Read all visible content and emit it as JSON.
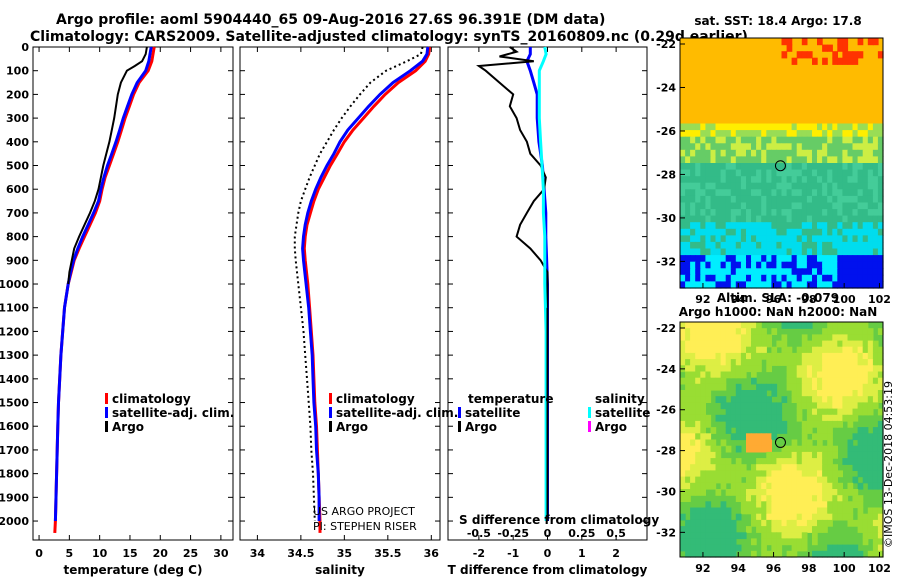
{
  "title": {
    "line1": "Argo profile: aoml 5904440_65 09-Aug-2016 27.6S 96.391E (DM data)",
    "line2": "Climatology: CARS2009. Satellite-adjusted climatology: synTS_20160809.nc (0.29d earlier)"
  },
  "colors": {
    "climatology": "#ff0000",
    "satellite": "#0000ff",
    "argo": "#000000",
    "sat_salinity": "#00ffff",
    "argo_salinity": "#ff00ff"
  },
  "panels": {
    "temperature": {
      "xlabel": "temperature (deg C)"
    },
    "salinity": {
      "xlabel": "salinity",
      "credit1": "US ARGO PROJECT",
      "credit2": "PI: STEPHEN RISER"
    },
    "difference": {
      "xlabel": "T difference from climatology",
      "top_label": "S difference from climatology",
      "legend_t_header": "temperature",
      "legend_s_header": "salinity"
    }
  },
  "legend": {
    "climatology": "climatology",
    "satellite": "satellite-adj. clim.",
    "argo": "Argo",
    "satellite_short": "satellite"
  },
  "maps": {
    "sst": {
      "title": "sat. SST: 18.4 Argo: 17.8",
      "xticks": [
        "92",
        "94",
        "96",
        "98",
        "100",
        "102"
      ],
      "yticks": [
        "-22",
        "-24",
        "-26",
        "-28",
        "-30",
        "-32"
      ]
    },
    "sla": {
      "title1": "Altim. SLA: -0.079",
      "title2": "Argo h1000: NaN h2000: NaN",
      "xticks": [
        "92",
        "94",
        "96",
        "98",
        "100",
        "102"
      ],
      "yticks": [
        "-22",
        "-24",
        "-26",
        "-28",
        "-30",
        "-32"
      ]
    },
    "watermark": "©IMOS 13-Dec-2018 04:53:19"
  },
  "chart_data": [
    {
      "type": "line",
      "title": "",
      "xlabel": "temperature (deg C)",
      "ylabel": "",
      "xlim": [
        -1,
        32
      ],
      "ylim": [
        2080,
        0
      ],
      "xticks": [
        "0",
        "5",
        "10",
        "15",
        "20",
        "25",
        "30"
      ],
      "yticks": [
        "0",
        "100",
        "200",
        "300",
        "400",
        "500",
        "600",
        "700",
        "800",
        "900",
        "1000",
        "1100",
        "1200",
        "1300",
        "1400",
        "1500",
        "1600",
        "1700",
        "1800",
        "1900",
        "2000"
      ],
      "series": [
        {
          "name": "climatology",
          "pressure": [
            0,
            30,
            60,
            100,
            150,
            200,
            250,
            300,
            350,
            400,
            450,
            500,
            550,
            600,
            650,
            700,
            750,
            800,
            850,
            900,
            950,
            1000,
            1100,
            1200,
            1300,
            1400,
            1500,
            1600,
            1700,
            1800,
            1900,
            2000,
            2050
          ],
          "values": [
            19.0,
            18.8,
            18.6,
            18.0,
            16.5,
            15.6,
            14.9,
            14.2,
            13.6,
            13.0,
            12.3,
            11.6,
            10.9,
            10.4,
            10.0,
            9.3,
            8.4,
            7.5,
            6.6,
            5.8,
            5.3,
            4.8,
            4.2,
            3.9,
            3.6,
            3.4,
            3.2,
            3.1,
            3.0,
            2.9,
            2.8,
            2.7,
            2.6
          ]
        },
        {
          "name": "satellite-adj. clim.",
          "pressure": [
            0,
            30,
            60,
            100,
            150,
            200,
            250,
            300,
            350,
            400,
            450,
            500,
            550,
            600,
            650,
            700,
            750,
            800,
            850,
            900,
            950,
            1000,
            1100,
            1200,
            1300,
            1400,
            1500,
            1600,
            1700,
            1800,
            1900,
            2000
          ],
          "values": [
            18.5,
            18.3,
            18.1,
            17.6,
            16.2,
            15.3,
            14.6,
            13.9,
            13.3,
            12.7,
            12.0,
            11.3,
            10.7,
            10.2,
            9.8,
            9.0,
            8.1,
            7.2,
            6.4,
            5.7,
            5.2,
            4.8,
            4.2,
            3.9,
            3.6,
            3.4,
            3.2,
            3.1,
            3.0,
            2.9,
            2.8,
            2.7
          ]
        },
        {
          "name": "Argo",
          "pressure": [
            0,
            30,
            60,
            80,
            100,
            150,
            200,
            250,
            300,
            350,
            400,
            450,
            500,
            550,
            600,
            650,
            700,
            750,
            800,
            850,
            900,
            950,
            1000
          ],
          "values": [
            17.8,
            17.6,
            17.0,
            15.8,
            14.5,
            13.5,
            13.0,
            12.7,
            12.4,
            12.0,
            11.6,
            11.1,
            10.6,
            10.2,
            9.8,
            9.2,
            8.4,
            7.5,
            6.6,
            5.8,
            5.4,
            5.0,
            4.8
          ]
        }
      ]
    },
    {
      "type": "line",
      "title": "",
      "xlabel": "salinity",
      "ylabel": "",
      "xlim": [
        33.8,
        36.1
      ],
      "ylim": [
        2080,
        0
      ],
      "xticks": [
        "34",
        "34.5",
        "35",
        "35.5",
        "36"
      ],
      "series": [
        {
          "name": "climatology",
          "pressure": [
            0,
            30,
            60,
            100,
            150,
            200,
            250,
            300,
            350,
            400,
            450,
            500,
            550,
            600,
            650,
            700,
            750,
            800,
            850,
            900,
            1000,
            1100,
            1200,
            1300,
            1400,
            1500,
            1600,
            1700,
            1800,
            1900,
            2000,
            2050
          ],
          "values": [
            35.98,
            35.97,
            35.93,
            35.82,
            35.62,
            35.47,
            35.34,
            35.22,
            35.1,
            35.0,
            34.92,
            34.84,
            34.77,
            34.7,
            34.65,
            34.61,
            34.57,
            34.55,
            34.54,
            34.55,
            34.58,
            34.6,
            34.62,
            34.64,
            34.65,
            34.66,
            34.68,
            34.69,
            34.7,
            34.71,
            34.72,
            34.72
          ]
        },
        {
          "name": "satellite-adj. clim.",
          "pressure": [
            0,
            30,
            60,
            100,
            150,
            200,
            250,
            300,
            350,
            400,
            450,
            500,
            550,
            600,
            650,
            700,
            750,
            800,
            850,
            900,
            1000,
            1100,
            1200,
            1300,
            1400,
            1500,
            1600,
            1700,
            1800,
            1900,
            2000
          ],
          "values": [
            35.96,
            35.95,
            35.9,
            35.76,
            35.56,
            35.41,
            35.28,
            35.16,
            35.04,
            34.95,
            34.88,
            34.8,
            34.73,
            34.67,
            34.62,
            34.58,
            34.55,
            34.53,
            34.52,
            34.53,
            34.56,
            34.59,
            34.61,
            34.63,
            34.64,
            34.65,
            34.67,
            34.68,
            34.7,
            34.71,
            34.71
          ]
        },
        {
          "name": "Argo",
          "pressure": [
            0,
            30,
            60,
            100,
            150,
            200,
            250,
            300,
            350,
            400,
            450,
            500,
            550,
            600,
            650,
            700,
            750,
            800,
            850,
            900,
            1000,
            1100,
            1200,
            1300,
            1400,
            1500,
            1600,
            1700,
            1800,
            1900,
            2000
          ],
          "values": [
            35.9,
            35.88,
            35.72,
            35.48,
            35.3,
            35.18,
            35.07,
            34.97,
            34.88,
            34.8,
            34.72,
            34.66,
            34.6,
            34.55,
            34.5,
            34.47,
            34.45,
            34.43,
            34.43,
            34.44,
            34.47,
            34.5,
            34.53,
            34.55,
            34.57,
            34.59,
            34.61,
            34.62,
            34.64,
            34.65,
            34.66
          ]
        }
      ]
    },
    {
      "type": "line",
      "title": "",
      "xlabel": "T difference from climatology",
      "ylabel": "",
      "xlim": [
        -2.9,
        2.9
      ],
      "ylim": [
        2080,
        0
      ],
      "xticks": [
        "-2",
        "-1",
        "0",
        "1",
        "2"
      ],
      "top_axis": {
        "label": "S difference from climatology",
        "xlim": [
          -0.725,
          0.725
        ],
        "xticks": [
          "-0.5",
          "-0.25",
          "0",
          "0.25",
          "0.5"
        ]
      },
      "series": [
        {
          "name": "temperature satellite",
          "pressure": [
            0,
            30,
            60,
            100,
            150,
            200,
            250,
            300,
            400,
            500,
            600,
            700,
            800,
            1000,
            1200,
            1500,
            1800,
            2000
          ],
          "values": [
            -0.5,
            -0.5,
            -0.6,
            -0.5,
            -0.4,
            -0.3,
            -0.3,
            -0.3,
            -0.25,
            -0.15,
            -0.1,
            -0.05,
            -0.05,
            0,
            0,
            0,
            0,
            0
          ]
        },
        {
          "name": "temperature Argo",
          "pressure": [
            0,
            20,
            40,
            60,
            80,
            100,
            150,
            200,
            250,
            300,
            350,
            400,
            450,
            500,
            550,
            600,
            650,
            700,
            750,
            800,
            850,
            900,
            950,
            1000,
            1100
          ],
          "values": [
            -1.1,
            -0.9,
            -1.4,
            -0.4,
            -2.0,
            -1.8,
            -1.4,
            -1.0,
            -1.1,
            -0.9,
            -0.8,
            -0.6,
            -0.5,
            -0.2,
            -0.05,
            -0.1,
            -0.4,
            -0.6,
            -0.8,
            -0.9,
            -0.5,
            -0.2,
            0,
            0,
            0
          ]
        },
        {
          "name": "salinity satellite",
          "pressure": [
            0,
            30,
            60,
            100,
            150,
            200,
            250,
            300,
            400,
            500,
            600,
            700,
            800,
            1000,
            1200,
            1500,
            1800,
            2000
          ],
          "values": [
            -0.02,
            -0.01,
            -0.03,
            -0.06,
            -0.06,
            -0.06,
            -0.06,
            -0.06,
            -0.05,
            -0.04,
            -0.03,
            -0.03,
            -0.02,
            -0.02,
            -0.01,
            -0.01,
            -0.01,
            -0.01
          ]
        },
        {
          "name": "salinity Argo",
          "pressure": [],
          "values": []
        }
      ]
    }
  ]
}
